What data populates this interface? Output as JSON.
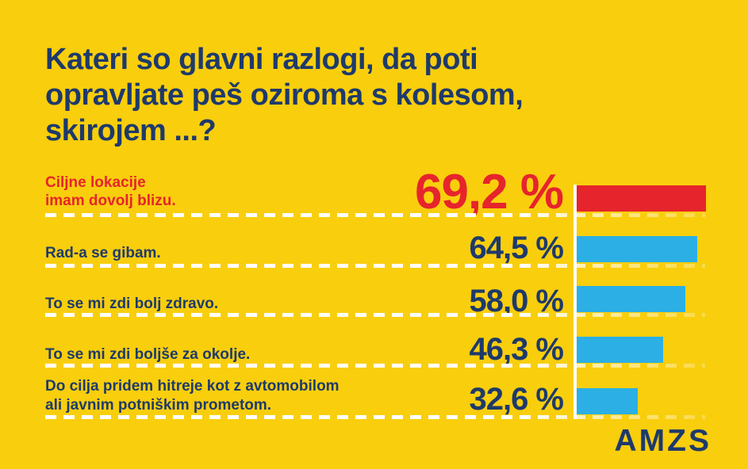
{
  "title": {
    "lines": [
      "Kateri so glavni razlogi, da poti",
      "opravljate peš oziroma s kolesom,",
      "skirojem ...?"
    ],
    "text": "Kateri so glavni razlogi, da poti opravljate peš oziroma s kolesom, skirojem ...?"
  },
  "logo": {
    "text": "AMZS"
  },
  "colors": {
    "background": "#F9CE0D",
    "navy": "#1E3A6B",
    "red": "#E6242C",
    "bar_blue": "#2BAFE5",
    "separator_white": "#FFFFFF"
  },
  "chart_data": {
    "type": "bar",
    "orientation": "horizontal",
    "title": "Kateri so glavni razlogi, da poti opravljate peš oziroma s kolesom, skirojem ...?",
    "unit": "%",
    "decimal_separator": ",",
    "grid": false,
    "legend": null,
    "xlim": [
      0,
      100
    ],
    "categories": [
      "Ciljne lokacije imam dovolj blizu.",
      "Rad-a se gibam.",
      "To se mi zdi bolj zdravo.",
      "To se mi zdi boljše za okolje.",
      "Do cilja pridem hitreje kot z avtomobilom ali javnim potniškim prometom."
    ],
    "values": [
      69.2,
      64.5,
      58.0,
      46.3,
      32.6
    ],
    "rows": [
      {
        "label_line1": "Ciljne lokacije",
        "label_line2": "imam dovolj blizu.",
        "value": 69.2,
        "value_label": "69,2 %",
        "bar_color": "#E6242C",
        "text_color": "#E6242C",
        "highlight": true
      },
      {
        "label_line1": "Rad-a se gibam.",
        "label_line2": "",
        "value": 64.5,
        "value_label": "64,5 %",
        "bar_color": "#2BAFE5",
        "text_color": "#1E3A6B",
        "highlight": false
      },
      {
        "label_line1": "To se mi zdi bolj zdravo.",
        "label_line2": "",
        "value": 58.0,
        "value_label": "58,0 %",
        "bar_color": "#2BAFE5",
        "text_color": "#1E3A6B",
        "highlight": false
      },
      {
        "label_line1": "To se mi zdi boljše za okolje.",
        "label_line2": "",
        "value": 46.3,
        "value_label": "46,3 %",
        "bar_color": "#2BAFE5",
        "text_color": "#1E3A6B",
        "highlight": false
      },
      {
        "label_line1": "Do cilja pridem hitreje kot z avtomobilom",
        "label_line2": "ali javnim potniškim prometom.",
        "value": 32.6,
        "value_label": "32,6 %",
        "bar_color": "#2BAFE5",
        "text_color": "#1E3A6B",
        "highlight": false
      }
    ]
  }
}
